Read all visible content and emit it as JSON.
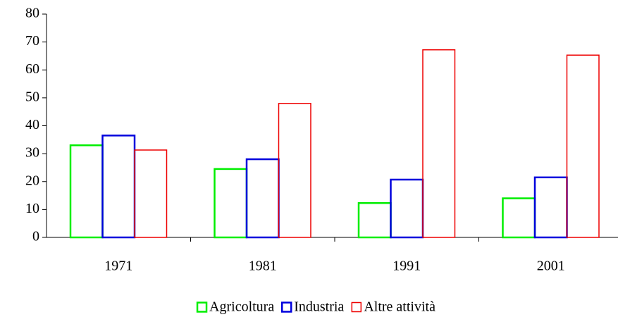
{
  "chart_data": {
    "type": "bar",
    "categories": [
      "1971",
      "1981",
      "1991",
      "2001"
    ],
    "series": [
      {
        "name": "Agricoltura",
        "color": "#00ee00",
        "values": [
          33,
          24.5,
          12.3,
          14
        ]
      },
      {
        "name": "Industria",
        "color": "#0000dd",
        "values": [
          36.5,
          28,
          20.7,
          21.5
        ]
      },
      {
        "name": "Altre attività",
        "color": "#ee0000",
        "values": [
          31.3,
          48,
          67.2,
          65.3
        ]
      }
    ],
    "ylim": [
      0,
      80
    ],
    "yticks": [
      0,
      10,
      20,
      30,
      40,
      50,
      60,
      70,
      80
    ],
    "legend": "bottom",
    "grid": false
  }
}
